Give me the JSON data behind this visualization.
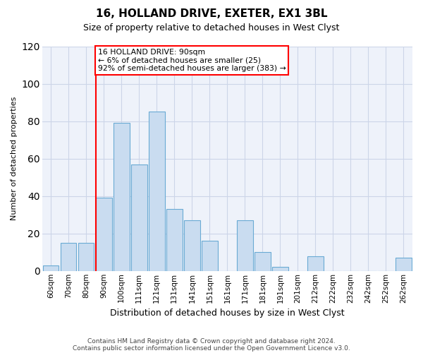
{
  "title": "16, HOLLAND DRIVE, EXETER, EX1 3BL",
  "subtitle": "Size of property relative to detached houses in West Clyst",
  "xlabel": "Distribution of detached houses by size in West Clyst",
  "ylabel": "Number of detached properties",
  "bar_labels": [
    "60sqm",
    "70sqm",
    "80sqm",
    "90sqm",
    "100sqm",
    "111sqm",
    "121sqm",
    "131sqm",
    "141sqm",
    "151sqm",
    "161sqm",
    "171sqm",
    "181sqm",
    "191sqm",
    "201sqm",
    "212sqm",
    "222sqm",
    "232sqm",
    "242sqm",
    "252sqm",
    "262sqm"
  ],
  "bar_values": [
    3,
    15,
    15,
    39,
    79,
    57,
    85,
    33,
    27,
    16,
    0,
    27,
    10,
    2,
    0,
    8,
    0,
    0,
    0,
    0,
    7
  ],
  "bar_color": "#c9dcf0",
  "bar_edge_color": "#6aaad4",
  "marker_bin_index": 3,
  "annotation_line1": "16 HOLLAND DRIVE: 90sqm",
  "annotation_line2": "← 6% of detached houses are smaller (25)",
  "annotation_line3": "92% of semi-detached houses are larger (383) →",
  "ylim": [
    0,
    120
  ],
  "yticks": [
    0,
    20,
    40,
    60,
    80,
    100,
    120
  ],
  "grid_color": "#ccd5e8",
  "bg_color": "#eef2fa",
  "footnote1": "Contains HM Land Registry data © Crown copyright and database right 2024.",
  "footnote2": "Contains public sector information licensed under the Open Government Licence v3.0."
}
